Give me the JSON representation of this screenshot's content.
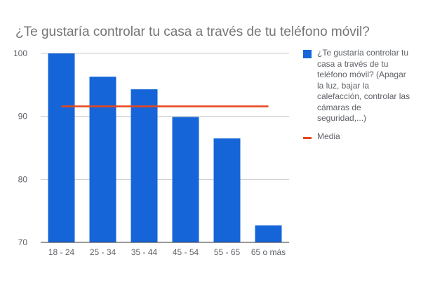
{
  "chart_data": {
    "type": "bar",
    "title": "¿Te gustaría controlar tu casa a través de tu teléfono móvil?",
    "categories": [
      "18 - 24",
      "25 - 34",
      "35 - 44",
      "45 - 54",
      "55 - 65",
      "65 o más"
    ],
    "series": [
      {
        "name": "¿Te gustaría controlar tu casa a través de tu teléfono móvil? (Apagar la luz, bajar la calefacción, controlar las cámaras de seguridad,...)",
        "type": "bar",
        "color": "#1565d8",
        "values": [
          100,
          96.3,
          94.3,
          89.9,
          86.5,
          72.7
        ]
      },
      {
        "name": "Media",
        "type": "line",
        "color": "#e8461c",
        "values": [
          91.6,
          91.6,
          91.6,
          91.6,
          91.6,
          91.6
        ]
      }
    ],
    "ylim": [
      70,
      100
    ],
    "yticks": [
      70,
      80,
      90,
      100
    ],
    "xlabel": "",
    "ylabel": "",
    "grid": true,
    "legend_position": "right"
  }
}
